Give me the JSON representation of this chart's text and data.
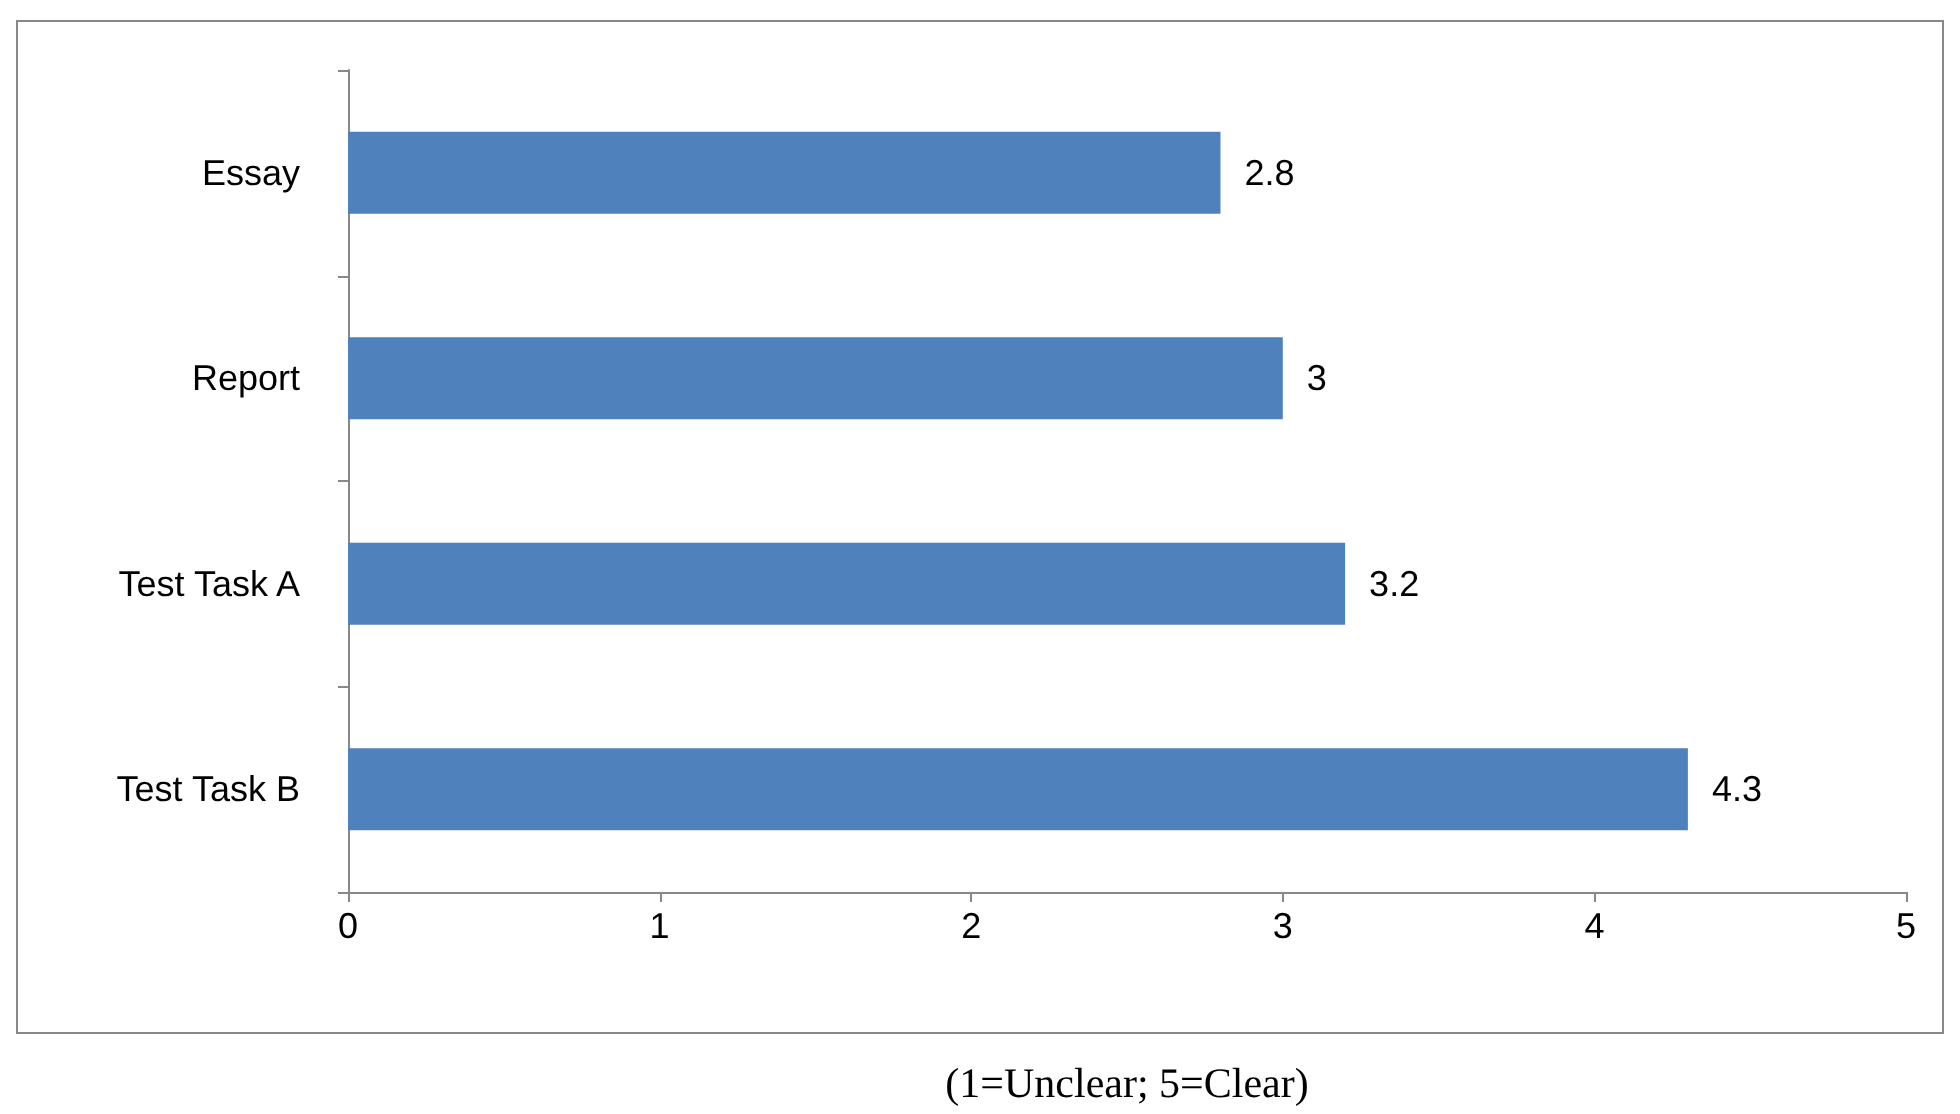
{
  "chart_data": {
    "type": "bar",
    "orientation": "horizontal",
    "xlabel": "(1=Unclear; 5=Clear)",
    "categories": [
      "Essay",
      "Report",
      "Test Task A",
      "Test Task B"
    ],
    "values": [
      2.8,
      3,
      3.2,
      4.3
    ],
    "color": "#4f81bd",
    "xlim": [
      0,
      5
    ],
    "xticks": [
      0,
      1,
      2,
      3,
      4,
      5
    ],
    "grid": false,
    "data_labels": true
  }
}
